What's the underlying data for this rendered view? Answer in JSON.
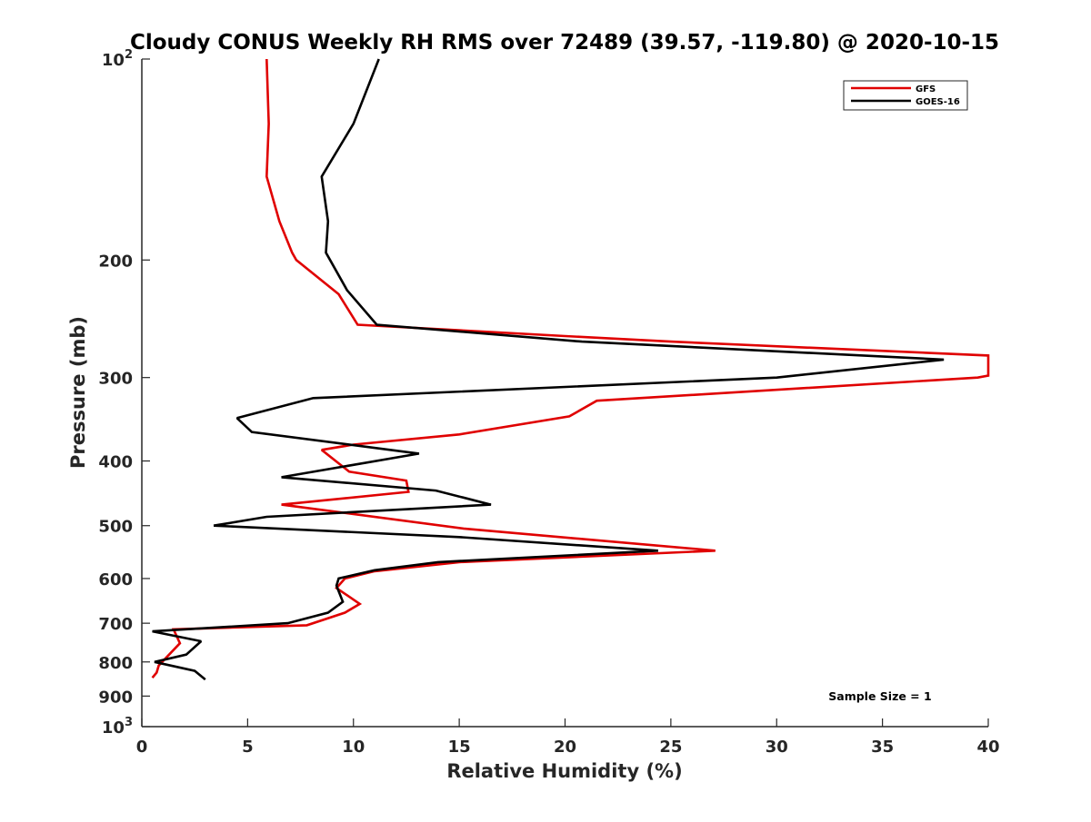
{
  "chart_data": {
    "type": "line",
    "title": "Cloudy CONUS Weekly RH RMS over 72489 (39.57, -119.80) @ 2020-10-15",
    "xlabel": "Relative Humidity (%)",
    "ylabel": "Pressure (mb)",
    "xlim": [
      0,
      40
    ],
    "ylim": [
      100,
      1000
    ],
    "y_scale": "log",
    "y_reversed": true,
    "x_ticks": [
      0,
      5,
      10,
      15,
      20,
      25,
      30,
      35,
      40
    ],
    "y_ticks": [
      {
        "value": 100,
        "label": "10",
        "sup": "2"
      },
      {
        "value": 200,
        "label": "200"
      },
      {
        "value": 300,
        "label": "300"
      },
      {
        "value": 400,
        "label": "400"
      },
      {
        "value": 500,
        "label": "500"
      },
      {
        "value": 600,
        "label": "600"
      },
      {
        "value": 700,
        "label": "700"
      },
      {
        "value": 800,
        "label": "800"
      },
      {
        "value": 900,
        "label": "900"
      },
      {
        "value": 1000,
        "label": "10",
        "sup": "3"
      }
    ],
    "grid": false,
    "legend_position": "top-right",
    "annotation": "Sample Size = 1",
    "series": [
      {
        "name": "GFS",
        "color": "#e00000",
        "points": [
          [
            5.9,
            100
          ],
          [
            6.0,
            125
          ],
          [
            5.9,
            150
          ],
          [
            6.5,
            175
          ],
          [
            7.1,
            195
          ],
          [
            7.3,
            200
          ],
          [
            9.3,
            225
          ],
          [
            10.2,
            250
          ],
          [
            20.0,
            260
          ],
          [
            25.0,
            265
          ],
          [
            40.0,
            278
          ],
          [
            40.0,
            298
          ],
          [
            39.5,
            300
          ],
          [
            21.5,
            325
          ],
          [
            20.2,
            343
          ],
          [
            15.0,
            365
          ],
          [
            10.0,
            378
          ],
          [
            8.5,
            385
          ],
          [
            9.8,
            415
          ],
          [
            12.5,
            428
          ],
          [
            12.6,
            445
          ],
          [
            6.6,
            465
          ],
          [
            15.2,
            505
          ],
          [
            27.1,
            545
          ],
          [
            15.0,
            567
          ],
          [
            11.0,
            585
          ],
          [
            9.6,
            600
          ],
          [
            9.2,
            620
          ],
          [
            10.3,
            655
          ],
          [
            9.6,
            675
          ],
          [
            7.8,
            705
          ],
          [
            1.5,
            715
          ],
          [
            1.8,
            750
          ],
          [
            0.8,
            810
          ],
          [
            0.7,
            830
          ],
          [
            0.5,
            845
          ]
        ]
      },
      {
        "name": "GOES-16",
        "color": "#000000",
        "points": [
          [
            11.2,
            100
          ],
          [
            10.0,
            125
          ],
          [
            8.5,
            150
          ],
          [
            8.8,
            175
          ],
          [
            8.7,
            195
          ],
          [
            8.9,
            200
          ],
          [
            9.7,
            222
          ],
          [
            11.1,
            250
          ],
          [
            20.8,
            265
          ],
          [
            37.9,
            282
          ],
          [
            30.0,
            300
          ],
          [
            8.1,
            322
          ],
          [
            4.5,
            345
          ],
          [
            5.2,
            362
          ],
          [
            13.1,
            390
          ],
          [
            6.6,
            423
          ],
          [
            13.9,
            443
          ],
          [
            16.5,
            465
          ],
          [
            5.9,
            485
          ],
          [
            3.4,
            500
          ],
          [
            15.0,
            520
          ],
          [
            24.4,
            545
          ],
          [
            14.0,
            567
          ],
          [
            11.0,
            583
          ],
          [
            9.3,
            600
          ],
          [
            9.2,
            615
          ],
          [
            9.5,
            650
          ],
          [
            8.8,
            675
          ],
          [
            6.9,
            700
          ],
          [
            0.5,
            720
          ],
          [
            2.8,
            745
          ],
          [
            2.1,
            780
          ],
          [
            0.6,
            800
          ],
          [
            2.5,
            825
          ],
          [
            3.0,
            850
          ]
        ]
      }
    ]
  }
}
